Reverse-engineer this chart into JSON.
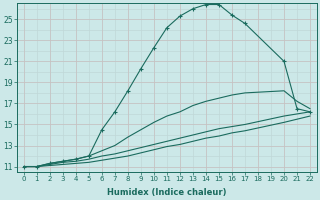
{
  "xlabel": "Humidex (Indice chaleur)",
  "background_color": "#cce8e8",
  "grid_color_major": "#b8d8d8",
  "grid_color_minor": "#d8ecec",
  "line_color": "#1a6b5e",
  "xlim": [
    -0.5,
    22.5
  ],
  "ylim": [
    10.5,
    26.5
  ],
  "xticks": [
    0,
    1,
    2,
    3,
    4,
    5,
    6,
    7,
    8,
    9,
    10,
    11,
    12,
    13,
    14,
    15,
    16,
    17,
    18,
    19,
    20,
    21,
    22
  ],
  "yticks": [
    11,
    13,
    15,
    17,
    19,
    21,
    23,
    25
  ],
  "lines": [
    {
      "x": [
        0,
        1,
        2,
        3,
        4,
        5,
        6,
        7,
        8,
        9,
        10,
        11,
        12,
        13,
        14,
        15,
        16,
        17,
        20,
        21,
        22
      ],
      "y": [
        11,
        11,
        11.3,
        11.5,
        11.7,
        12.0,
        14.5,
        16.2,
        18.2,
        20.3,
        22.3,
        24.2,
        25.3,
        26.0,
        26.4,
        26.4,
        25.4,
        24.6,
        21.0,
        16.5,
        16.2
      ],
      "marker": true
    },
    {
      "x": [
        0,
        1,
        2,
        3,
        4,
        5,
        6,
        7,
        8,
        9,
        10,
        11,
        12,
        13,
        14,
        15,
        16,
        17,
        20,
        21,
        22
      ],
      "y": [
        11,
        11,
        11.3,
        11.5,
        11.7,
        12.0,
        12.5,
        13.0,
        13.8,
        14.5,
        15.2,
        15.8,
        16.2,
        16.8,
        17.2,
        17.5,
        17.8,
        18.0,
        18.2,
        17.2,
        16.5
      ],
      "marker": false
    },
    {
      "x": [
        0,
        1,
        2,
        3,
        4,
        5,
        6,
        7,
        8,
        9,
        10,
        11,
        12,
        13,
        14,
        15,
        16,
        17,
        20,
        21,
        22
      ],
      "y": [
        11,
        11,
        11.2,
        11.4,
        11.5,
        11.7,
        12.0,
        12.2,
        12.5,
        12.8,
        13.1,
        13.4,
        13.7,
        14.0,
        14.3,
        14.6,
        14.8,
        15.0,
        15.8,
        16.0,
        16.2
      ],
      "marker": false
    },
    {
      "x": [
        0,
        1,
        2,
        3,
        4,
        5,
        6,
        7,
        8,
        9,
        10,
        11,
        12,
        13,
        14,
        15,
        16,
        17,
        20,
        21,
        22
      ],
      "y": [
        11,
        11,
        11.1,
        11.2,
        11.3,
        11.4,
        11.6,
        11.8,
        12.0,
        12.3,
        12.6,
        12.9,
        13.1,
        13.4,
        13.7,
        13.9,
        14.2,
        14.4,
        15.2,
        15.5,
        15.8
      ],
      "marker": false
    }
  ]
}
